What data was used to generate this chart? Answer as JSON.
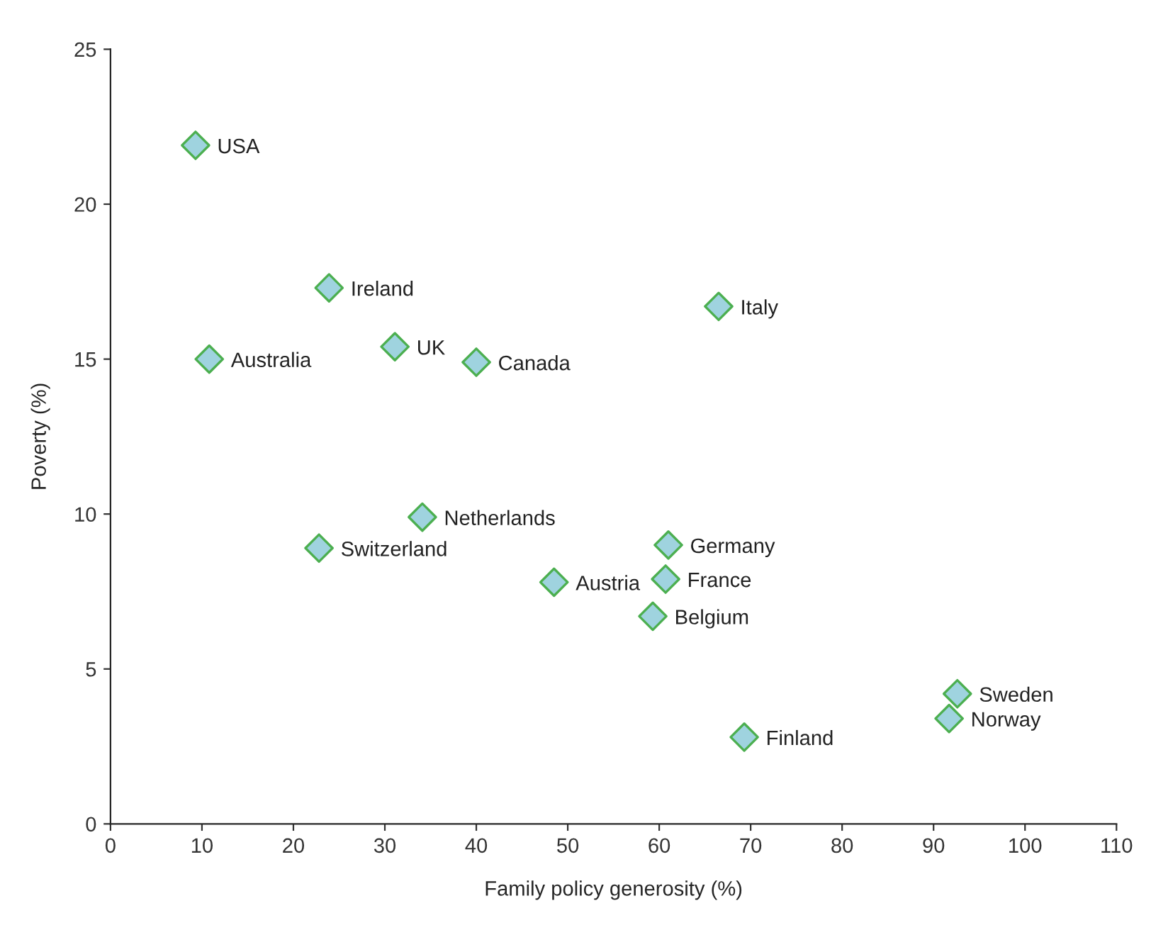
{
  "chart_data": {
    "type": "scatter",
    "xlabel": "Family policy generosity (%)",
    "ylabel": "Poverty (%)",
    "x": [
      9.3,
      23.9,
      10.8,
      31.1,
      40.0,
      66.5,
      34.1,
      22.8,
      61.0,
      48.5,
      60.7,
      59.3,
      92.6,
      91.7,
      69.3
    ],
    "series": [
      {
        "color": "#9fd3df",
        "values": [
          21.9,
          17.3,
          15.0,
          15.4,
          14.9,
          16.7,
          9.9,
          8.9,
          9.0,
          7.8,
          7.9,
          6.7,
          4.2,
          3.4,
          2.8
        ]
      }
    ],
    "annotations": [
      {
        "text": "USA",
        "x": 9.3,
        "y": 21.9
      },
      {
        "text": "Ireland",
        "x": 23.9,
        "y": 17.3
      },
      {
        "text": "Australia",
        "x": 10.8,
        "y": 15.0
      },
      {
        "text": "UK",
        "x": 31.1,
        "y": 15.4
      },
      {
        "text": "Canada",
        "x": 40.0,
        "y": 14.9
      },
      {
        "text": "Italy",
        "x": 66.5,
        "y": 16.7
      },
      {
        "text": "Netherlands",
        "x": 34.1,
        "y": 9.9
      },
      {
        "text": "Switzerland",
        "x": 22.8,
        "y": 8.9
      },
      {
        "text": "Germany",
        "x": 61.0,
        "y": 9.0
      },
      {
        "text": "Austria",
        "x": 48.5,
        "y": 7.8
      },
      {
        "text": "France",
        "x": 60.7,
        "y": 7.9
      },
      {
        "text": "Belgium",
        "x": 59.3,
        "y": 6.7
      },
      {
        "text": "Sweden",
        "x": 92.6,
        "y": 4.2
      },
      {
        "text": "Norway",
        "x": 91.7,
        "y": 3.4
      },
      {
        "text": "Finland",
        "x": 69.3,
        "y": 2.8
      }
    ],
    "xlim": [
      0,
      110
    ],
    "xticks": [
      0,
      10,
      20,
      30,
      40,
      50,
      60,
      70,
      80,
      90,
      100,
      110
    ],
    "ylim": [
      0,
      25
    ],
    "yticks": [
      0,
      5,
      10,
      15,
      20,
      25
    ],
    "marker": "diamond",
    "grid": false,
    "legend": false
  }
}
